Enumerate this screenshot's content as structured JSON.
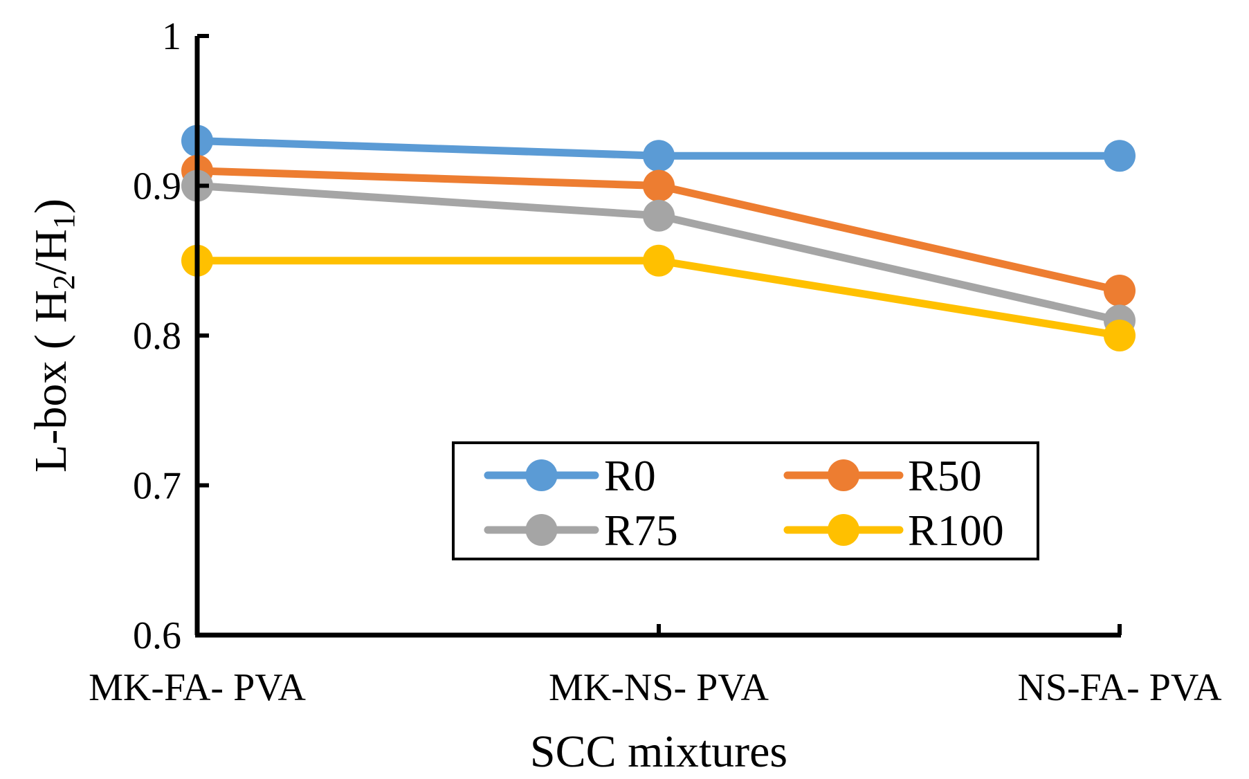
{
  "chart_data": {
    "type": "line",
    "title": "",
    "xlabel": "SCC mixtures",
    "ylabel": {
      "prefix": "L-box ( H",
      "sub1": "2",
      "mid": "/H",
      "sub2": "1",
      "suffix": ")"
    },
    "categories": [
      "MK-FA- PVA",
      "MK-NS- PVA",
      "NS-FA- PVA"
    ],
    "ylim": [
      0.6,
      1.0
    ],
    "yticks": [
      0.6,
      0.7,
      0.8,
      0.9,
      1.0
    ],
    "ytick_labels": [
      "0.6",
      "0.7",
      "0.8",
      "0.9",
      "1"
    ],
    "grid": false,
    "legend_position": "bottom-right",
    "series": [
      {
        "name": "R0",
        "color": "#5B9BD5",
        "values": [
          0.93,
          0.92,
          0.92
        ]
      },
      {
        "name": "R50",
        "color": "#ED7D31",
        "values": [
          0.91,
          0.9,
          0.83
        ]
      },
      {
        "name": "R75",
        "color": "#A5A5A5",
        "values": [
          0.9,
          0.88,
          0.81
        ]
      },
      {
        "name": "R100",
        "color": "#FFC000",
        "values": [
          0.85,
          0.85,
          0.8
        ]
      }
    ]
  }
}
